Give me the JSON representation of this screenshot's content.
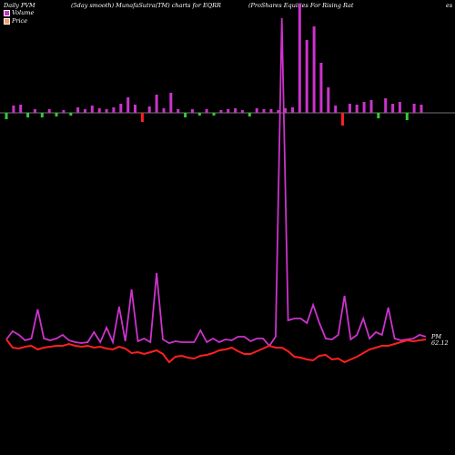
{
  "header": {
    "left": "Daily PVM",
    "middle": "(5day smooth) MunafaSutra(TM) charts for EQRR",
    "right": "(ProShares Equities For Rising Rat",
    "edge": "es"
  },
  "legend": {
    "volume_label": "Volume",
    "price_label": "Price",
    "volume_color": "#cc33cc",
    "price_color": "#ff9966"
  },
  "end_labels": {
    "top": "PM",
    "bottom": "62.12"
  },
  "colors": {
    "background": "#000000",
    "up_bar": "#cc33cc",
    "down_bar_red": "#ff2020",
    "down_bar_green": "#33cc33",
    "volume_line": "#cc33cc",
    "price_line": "#ff2020"
  },
  "chart_data": {
    "type": "bar",
    "bars": [
      {
        "h": 7,
        "c": "g"
      },
      {
        "h": 8,
        "c": "p"
      },
      {
        "h": 9,
        "c": "p"
      },
      {
        "h": 5,
        "c": "g"
      },
      {
        "h": 4,
        "c": "p"
      },
      {
        "h": 5,
        "c": "g"
      },
      {
        "h": 4,
        "c": "p"
      },
      {
        "h": 4,
        "c": "g"
      },
      {
        "h": 3,
        "c": "p"
      },
      {
        "h": 3,
        "c": "g"
      },
      {
        "h": 6,
        "c": "p"
      },
      {
        "h": 4,
        "c": "p"
      },
      {
        "h": 8,
        "c": "p"
      },
      {
        "h": 5,
        "c": "p"
      },
      {
        "h": 4,
        "c": "p"
      },
      {
        "h": 6,
        "c": "p"
      },
      {
        "h": 10,
        "c": "p"
      },
      {
        "h": 17,
        "c": "p"
      },
      {
        "h": 9,
        "c": "p"
      },
      {
        "h": 10,
        "c": "r"
      },
      {
        "h": 7,
        "c": "p"
      },
      {
        "h": 20,
        "c": "p"
      },
      {
        "h": 5,
        "c": "p"
      },
      {
        "h": 22,
        "c": "p"
      },
      {
        "h": 4,
        "c": "p"
      },
      {
        "h": 5,
        "c": "g"
      },
      {
        "h": 4,
        "c": "p"
      },
      {
        "h": 3,
        "c": "g"
      },
      {
        "h": 4,
        "c": "p"
      },
      {
        "h": 3,
        "c": "g"
      },
      {
        "h": 3,
        "c": "p"
      },
      {
        "h": 4,
        "c": "p"
      },
      {
        "h": 5,
        "c": "p"
      },
      {
        "h": 3,
        "c": "p"
      },
      {
        "h": 4,
        "c": "g"
      },
      {
        "h": 5,
        "c": "p"
      },
      {
        "h": 4,
        "c": "p"
      },
      {
        "h": 4,
        "c": "p"
      },
      {
        "h": 3,
        "c": "p"
      },
      {
        "h": 5,
        "c": "p"
      },
      {
        "h": 6,
        "c": "p"
      },
      {
        "h": 120,
        "c": "p"
      },
      {
        "h": 80,
        "c": "p"
      },
      {
        "h": 95,
        "c": "p"
      },
      {
        "h": 55,
        "c": "p"
      },
      {
        "h": 28,
        "c": "p"
      },
      {
        "h": 8,
        "c": "p"
      },
      {
        "h": 14,
        "c": "r"
      },
      {
        "h": 10,
        "c": "p"
      },
      {
        "h": 9,
        "c": "p"
      },
      {
        "h": 12,
        "c": "p"
      },
      {
        "h": 14,
        "c": "p"
      },
      {
        "h": 6,
        "c": "g"
      },
      {
        "h": 16,
        "c": "p"
      },
      {
        "h": 10,
        "c": "p"
      },
      {
        "h": 12,
        "c": "p"
      },
      {
        "h": 8,
        "c": "g"
      },
      {
        "h": 10,
        "c": "p"
      },
      {
        "h": 9,
        "c": "p"
      }
    ],
    "volume_line": [
      373,
      364,
      368,
      374,
      372,
      340,
      372,
      374,
      372,
      368,
      374,
      376,
      377,
      376,
      365,
      376,
      360,
      376,
      337,
      375,
      318,
      375,
      372,
      376,
      300,
      373,
      377,
      375,
      376,
      376,
      376,
      363,
      376,
      372,
      376,
      373,
      374,
      370,
      370,
      375,
      372,
      372,
      380,
      370,
      20,
      352,
      350,
      350,
      355,
      335,
      355,
      372,
      373,
      368,
      325,
      373,
      368,
      350,
      372,
      365,
      368,
      338,
      372,
      374,
      373,
      372,
      368,
      370
    ],
    "price_line": [
      373,
      382,
      383,
      381,
      380,
      384,
      382,
      381,
      380,
      380,
      378,
      380,
      381,
      380,
      382,
      381,
      383,
      384,
      381,
      383,
      388,
      387,
      389,
      387,
      385,
      389,
      398,
      392,
      391,
      393,
      394,
      391,
      390,
      388,
      385,
      384,
      382,
      386,
      389,
      389,
      386,
      383,
      380,
      382,
      382,
      386,
      392,
      393,
      395,
      396,
      391,
      390,
      395,
      394,
      398,
      395,
      392,
      388,
      384,
      382,
      380,
      380,
      378,
      376,
      374,
      375,
      374,
      373
    ]
  }
}
